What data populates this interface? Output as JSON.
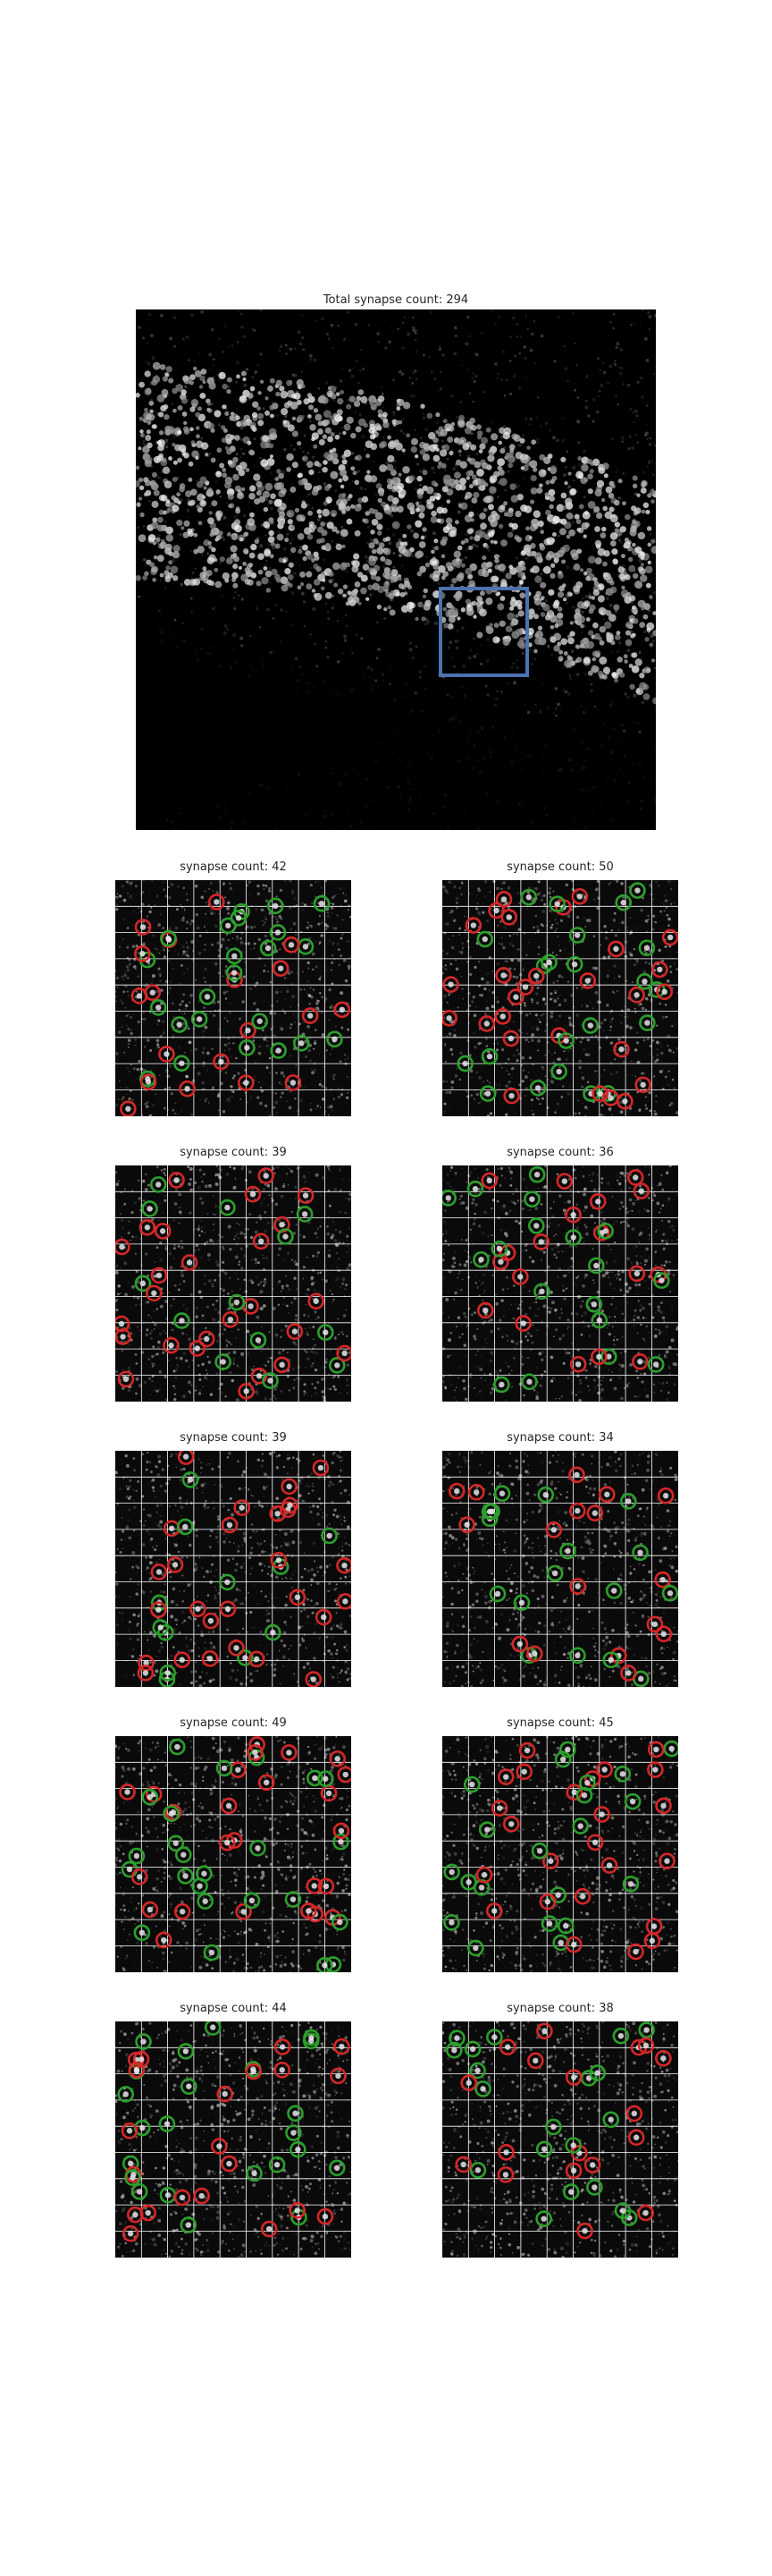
{
  "overview": {
    "title": "Total synapse count: 294",
    "roi_box_color": "#4c72b0"
  },
  "panels": [
    {
      "title": "synapse count: 42"
    },
    {
      "title": "synapse count: 50"
    },
    {
      "title": "synapse count: 39"
    },
    {
      "title": "synapse count: 36"
    },
    {
      "title": "synapse count: 39"
    },
    {
      "title": "synapse count: 34"
    },
    {
      "title": "synapse count: 49"
    },
    {
      "title": "synapse count: 45"
    },
    {
      "title": "synapse count: 44"
    },
    {
      "title": "synapse count: 38"
    }
  ],
  "colors": {
    "marker_red": "#d62728",
    "marker_green": "#2ca02c",
    "grid": "#ffffff"
  }
}
